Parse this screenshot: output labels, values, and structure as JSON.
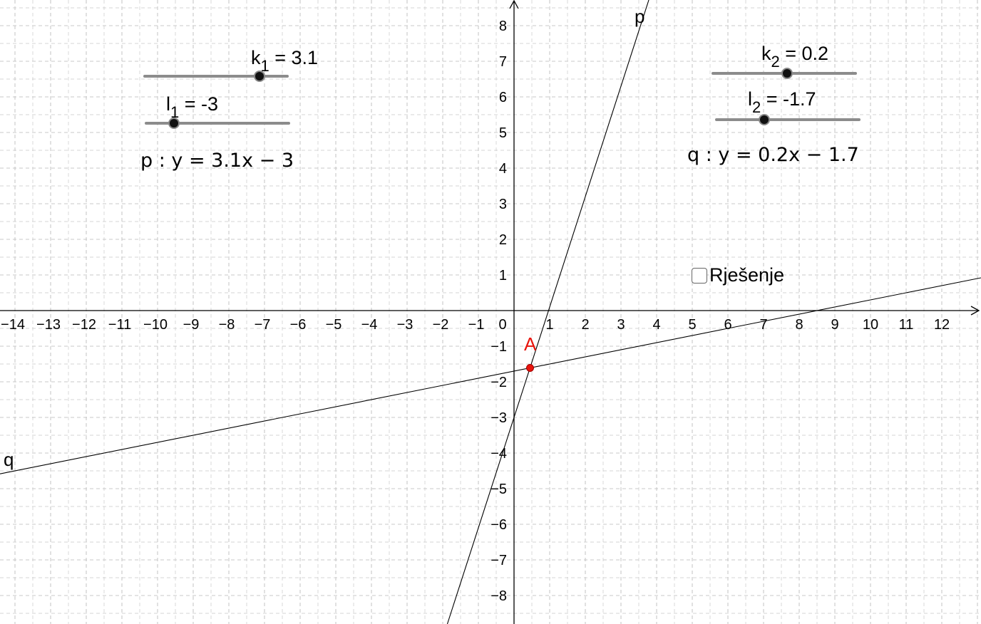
{
  "graph": {
    "x_ticks": [
      "−14",
      "−13",
      "−12",
      "−11",
      "−10",
      "−9",
      "−8",
      "−7",
      "−6",
      "−5",
      "−4",
      "−3",
      "−2",
      "−1",
      "0",
      "1",
      "2",
      "3",
      "4",
      "5",
      "6",
      "7",
      "8",
      "9",
      "10",
      "11",
      "12"
    ],
    "y_ticks": [
      "8",
      "7",
      "6",
      "5",
      "4",
      "3",
      "2",
      "1",
      "−1",
      "−2",
      "−3",
      "−4",
      "−5",
      "−6",
      "−7",
      "−8"
    ],
    "grid": "dashed",
    "grid_color": "#c8c8c8",
    "axis_color": "#000000",
    "point_color": "#e8140c"
  },
  "sliders": {
    "k1": {
      "symbol": "k",
      "index": "1",
      "value_text": "= 3.1",
      "min": -5,
      "max": 5,
      "value": 3.1
    },
    "l1": {
      "symbol": "l",
      "index": "1",
      "value_text": "= -3",
      "min": -5,
      "max": 5,
      "value": -3
    },
    "k2": {
      "symbol": "k",
      "index": "2",
      "value_text": "= 0.2",
      "min": -5,
      "max": 5,
      "value": 0.2
    },
    "l2": {
      "symbol": "l",
      "index": "2",
      "value_text": "= -1.7",
      "min": -5,
      "max": 5,
      "value": -1.7
    }
  },
  "equations": {
    "p": "p :  y = 3.1x − 3",
    "q": "q :  y = 0.2x − 1.7"
  },
  "lines": {
    "p": {
      "label": "p",
      "slope": 3.1,
      "intercept": -3
    },
    "q": {
      "label": "q",
      "slope": 0.2,
      "intercept": -1.7
    }
  },
  "point_A": {
    "label": "A",
    "x": 0.45,
    "y": -1.61
  },
  "checkbox": {
    "label": "Rješenje",
    "checked": false
  }
}
